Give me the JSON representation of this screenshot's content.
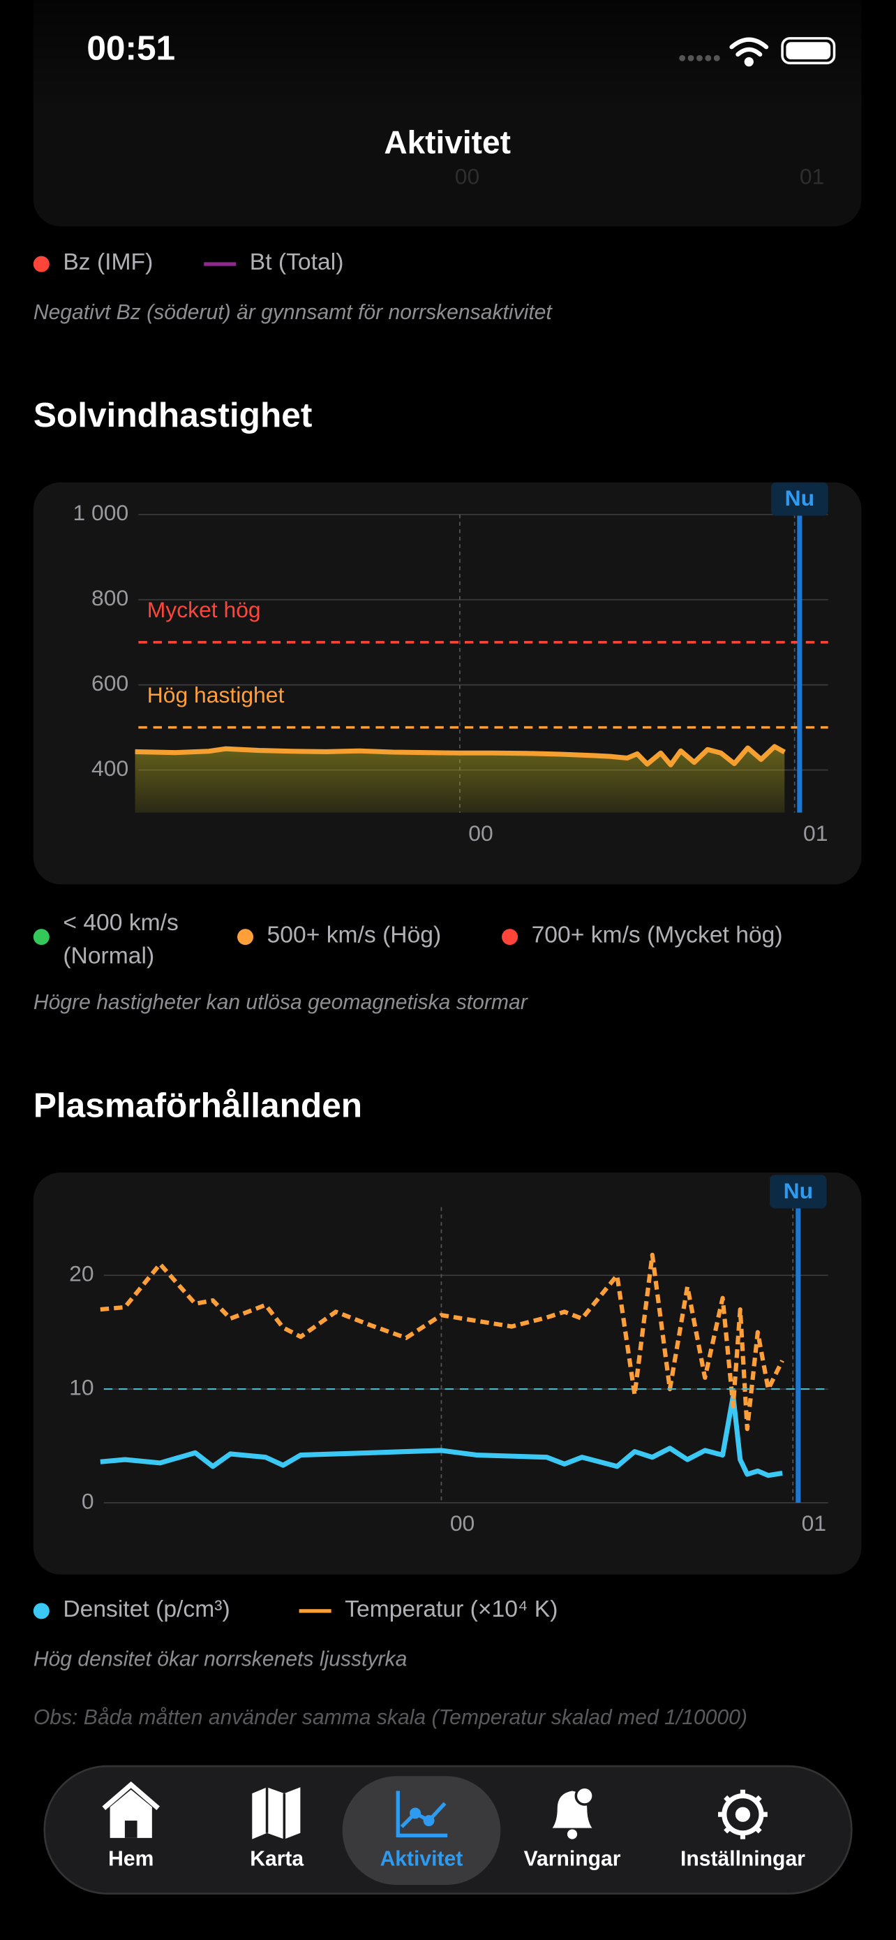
{
  "status_bar": {
    "time": "00:51"
  },
  "header": {
    "title": "Aktivitet"
  },
  "bz_section": {
    "xtick_labels": [
      "00",
      "01"
    ],
    "legend": [
      {
        "label": "Bz (IMF)",
        "color": "#ff453a",
        "marker": "dot"
      },
      {
        "label": "Bt (Total)",
        "color": "#8e2a8e",
        "marker": "line"
      }
    ],
    "note": "Negativt Bz (söderut) är gynnsamt för norrskensaktivitet"
  },
  "chart_data": [
    {
      "type": "line",
      "title": "Solvindhastighet",
      "x": [
        -0.97,
        -0.85,
        -0.75,
        -0.7,
        -0.6,
        -0.5,
        -0.4,
        -0.3,
        -0.2,
        -0.1,
        0,
        0.1,
        0.2,
        0.3,
        0.4,
        0.45,
        0.5,
        0.53,
        0.56,
        0.6,
        0.63,
        0.66,
        0.7,
        0.74,
        0.78,
        0.82,
        0.86,
        0.9,
        0.94,
        0.97
      ],
      "xlim": [
        -0.96,
        1.1
      ],
      "xticks": [
        {
          "value": 0,
          "label": "00"
        },
        {
          "value": 1,
          "label": "01"
        }
      ],
      "ylim": [
        300,
        1000
      ],
      "yticks": [
        {
          "value": 1000,
          "label": "1 000"
        },
        800,
        600,
        400
      ],
      "series": [
        {
          "color": "#f5a030",
          "area_color": "#a8a020",
          "values": [
            443,
            441,
            444,
            450,
            446,
            444,
            443,
            445,
            442,
            441,
            440,
            440,
            439,
            437,
            434,
            432,
            428,
            438,
            414,
            440,
            412,
            445,
            418,
            448,
            440,
            415,
            452,
            425,
            455,
            442
          ]
        }
      ],
      "reference_lines": [
        {
          "value": 700,
          "label": "Mycket hög",
          "color": "#ff453a"
        },
        {
          "value": 500,
          "label": "Hög hastighet",
          "color": "#ff9f3a"
        }
      ],
      "now_marker": {
        "x": 1.015,
        "label": "Nu",
        "color": "#1e78d2"
      },
      "grid": true,
      "legend": [
        {
          "label": "< 400 km/s (Normal)",
          "color": "#34c759"
        },
        {
          "label": "500+ km/s (Hög)",
          "color": "#ff9f3a"
        },
        {
          "label": "700+ km/s (Mycket hög)",
          "color": "#ff453a"
        }
      ],
      "notes": [
        "Högre hastigheter kan utlösa geomagnetiska stormar"
      ]
    },
    {
      "type": "line",
      "title": "Plasmaförhållanden",
      "x": [
        -0.97,
        -0.9,
        -0.8,
        -0.7,
        -0.65,
        -0.6,
        -0.5,
        -0.45,
        -0.4,
        -0.3,
        -0.2,
        -0.1,
        0,
        0.1,
        0.2,
        0.3,
        0.35,
        0.4,
        0.5,
        0.55,
        0.6,
        0.65,
        0.7,
        0.75,
        0.8,
        0.83,
        0.85,
        0.87,
        0.9,
        0.93,
        0.97
      ],
      "xlim": [
        -0.96,
        1.1
      ],
      "xticks": [
        {
          "value": 0,
          "label": "00"
        },
        {
          "value": 1,
          "label": "01"
        }
      ],
      "ylim": [
        0,
        26
      ],
      "yticks": [
        20,
        10,
        0
      ],
      "series": [
        {
          "name": "Densitet (p/cm³)",
          "color": "#3cc8f5",
          "dashed": false,
          "legend_marker": "dot",
          "values": [
            3.6,
            3.8,
            3.5,
            4.4,
            3.2,
            4.3,
            4.0,
            3.3,
            4.2,
            4.3,
            4.4,
            4.5,
            4.6,
            4.2,
            4.1,
            4.0,
            3.4,
            4.0,
            3.2,
            4.5,
            4.0,
            4.8,
            3.8,
            4.6,
            4.2,
            9.4,
            3.8,
            2.5,
            2.8,
            2.4,
            2.6
          ]
        },
        {
          "name": "Temperatur (×10⁴ K)",
          "color": "#ff9f3a",
          "dashed": true,
          "legend_marker": "line",
          "values": [
            17,
            17.2,
            21,
            17.5,
            17.8,
            16.2,
            17.4,
            15.4,
            14.6,
            16.8,
            15.6,
            14.5,
            16.5,
            16,
            15.5,
            16.3,
            16.8,
            16.2,
            20,
            9.5,
            21.8,
            10,
            19,
            11,
            18,
            8.5,
            17,
            6.5,
            15,
            10,
            12.5
          ]
        }
      ],
      "reference_lines": [
        {
          "value": 10,
          "color": "#4fb8c8"
        }
      ],
      "now_marker": {
        "x": 1.015,
        "label": "Nu",
        "color": "#1e78d2"
      },
      "grid": true,
      "notes": [
        "Hög densitet ökar norrskenets ljusstyrka",
        "Obs: Båda måtten använder samma skala (Temperatur skalad med 1/10000)"
      ]
    }
  ],
  "tab_bar": {
    "tabs": [
      {
        "label": "Hem",
        "selected": false
      },
      {
        "label": "Karta",
        "selected": false
      },
      {
        "label": "Aktivitet",
        "selected": true
      },
      {
        "label": "Varningar",
        "selected": false
      },
      {
        "label": "Inställningar",
        "selected": false
      }
    ]
  }
}
